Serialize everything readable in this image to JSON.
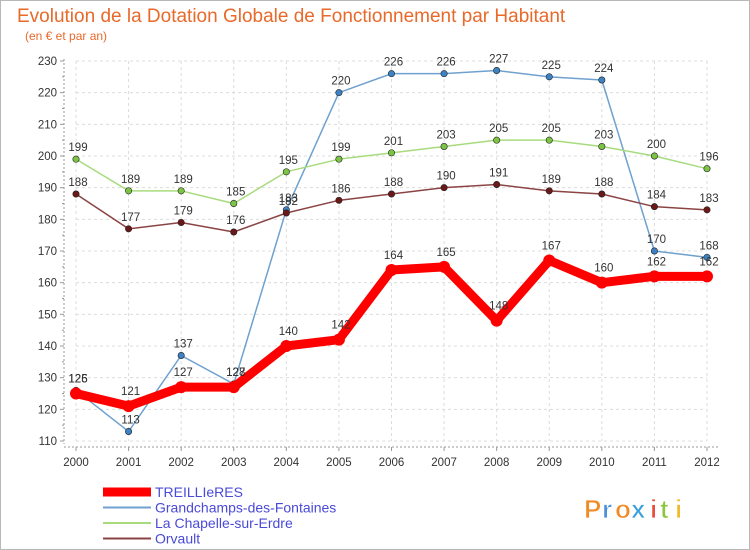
{
  "chart_data": {
    "type": "line",
    "title": "Evolution de la Dotation Globale de Fonctionnement par Habitant",
    "subtitle": "(en € et par an)",
    "xlabel": "",
    "ylabel": "",
    "ylim": [
      110,
      230
    ],
    "yticks": [
      110,
      120,
      130,
      140,
      150,
      160,
      170,
      180,
      190,
      200,
      210,
      220,
      230
    ],
    "categories": [
      "2000",
      "2001",
      "2002",
      "2003",
      "2004",
      "2005",
      "2006",
      "2007",
      "2008",
      "2009",
      "2010",
      "2011",
      "2012"
    ],
    "grid": true,
    "legend_position": "bottom-left",
    "series": [
      {
        "name": "Grandchamps-des-Fontaines",
        "color": "#6fa1cf",
        "marker": "#3d82c4",
        "values": [
          126,
          113,
          137,
          128,
          183,
          220,
          226,
          226,
          227,
          225,
          224,
          170,
          168
        ]
      },
      {
        "name": "La Chapelle-sur-Erdre",
        "color": "#a7db7d",
        "marker": "#7cc443",
        "values": [
          199,
          189,
          189,
          185,
          195,
          199,
          201,
          203,
          205,
          205,
          203,
          200,
          196
        ]
      },
      {
        "name": "Orvault",
        "color": "#8b4444",
        "marker": "#6b1818",
        "values": [
          188,
          177,
          179,
          176,
          182,
          186,
          188,
          190,
          191,
          189,
          188,
          184,
          183
        ]
      },
      {
        "name": "TREILLIeRES",
        "color": "#ff0000",
        "marker": "#ff0000",
        "values": [
          125,
          121,
          127,
          127,
          140,
          142,
          164,
          165,
          148,
          167,
          160,
          162,
          162
        ]
      }
    ],
    "legend_order": [
      "TREILLIeRES",
      "Grandchamps-des-Fontaines",
      "La Chapelle-sur-Erdre",
      "Orvault"
    ]
  },
  "logo": {
    "text": "Proxiti"
  }
}
